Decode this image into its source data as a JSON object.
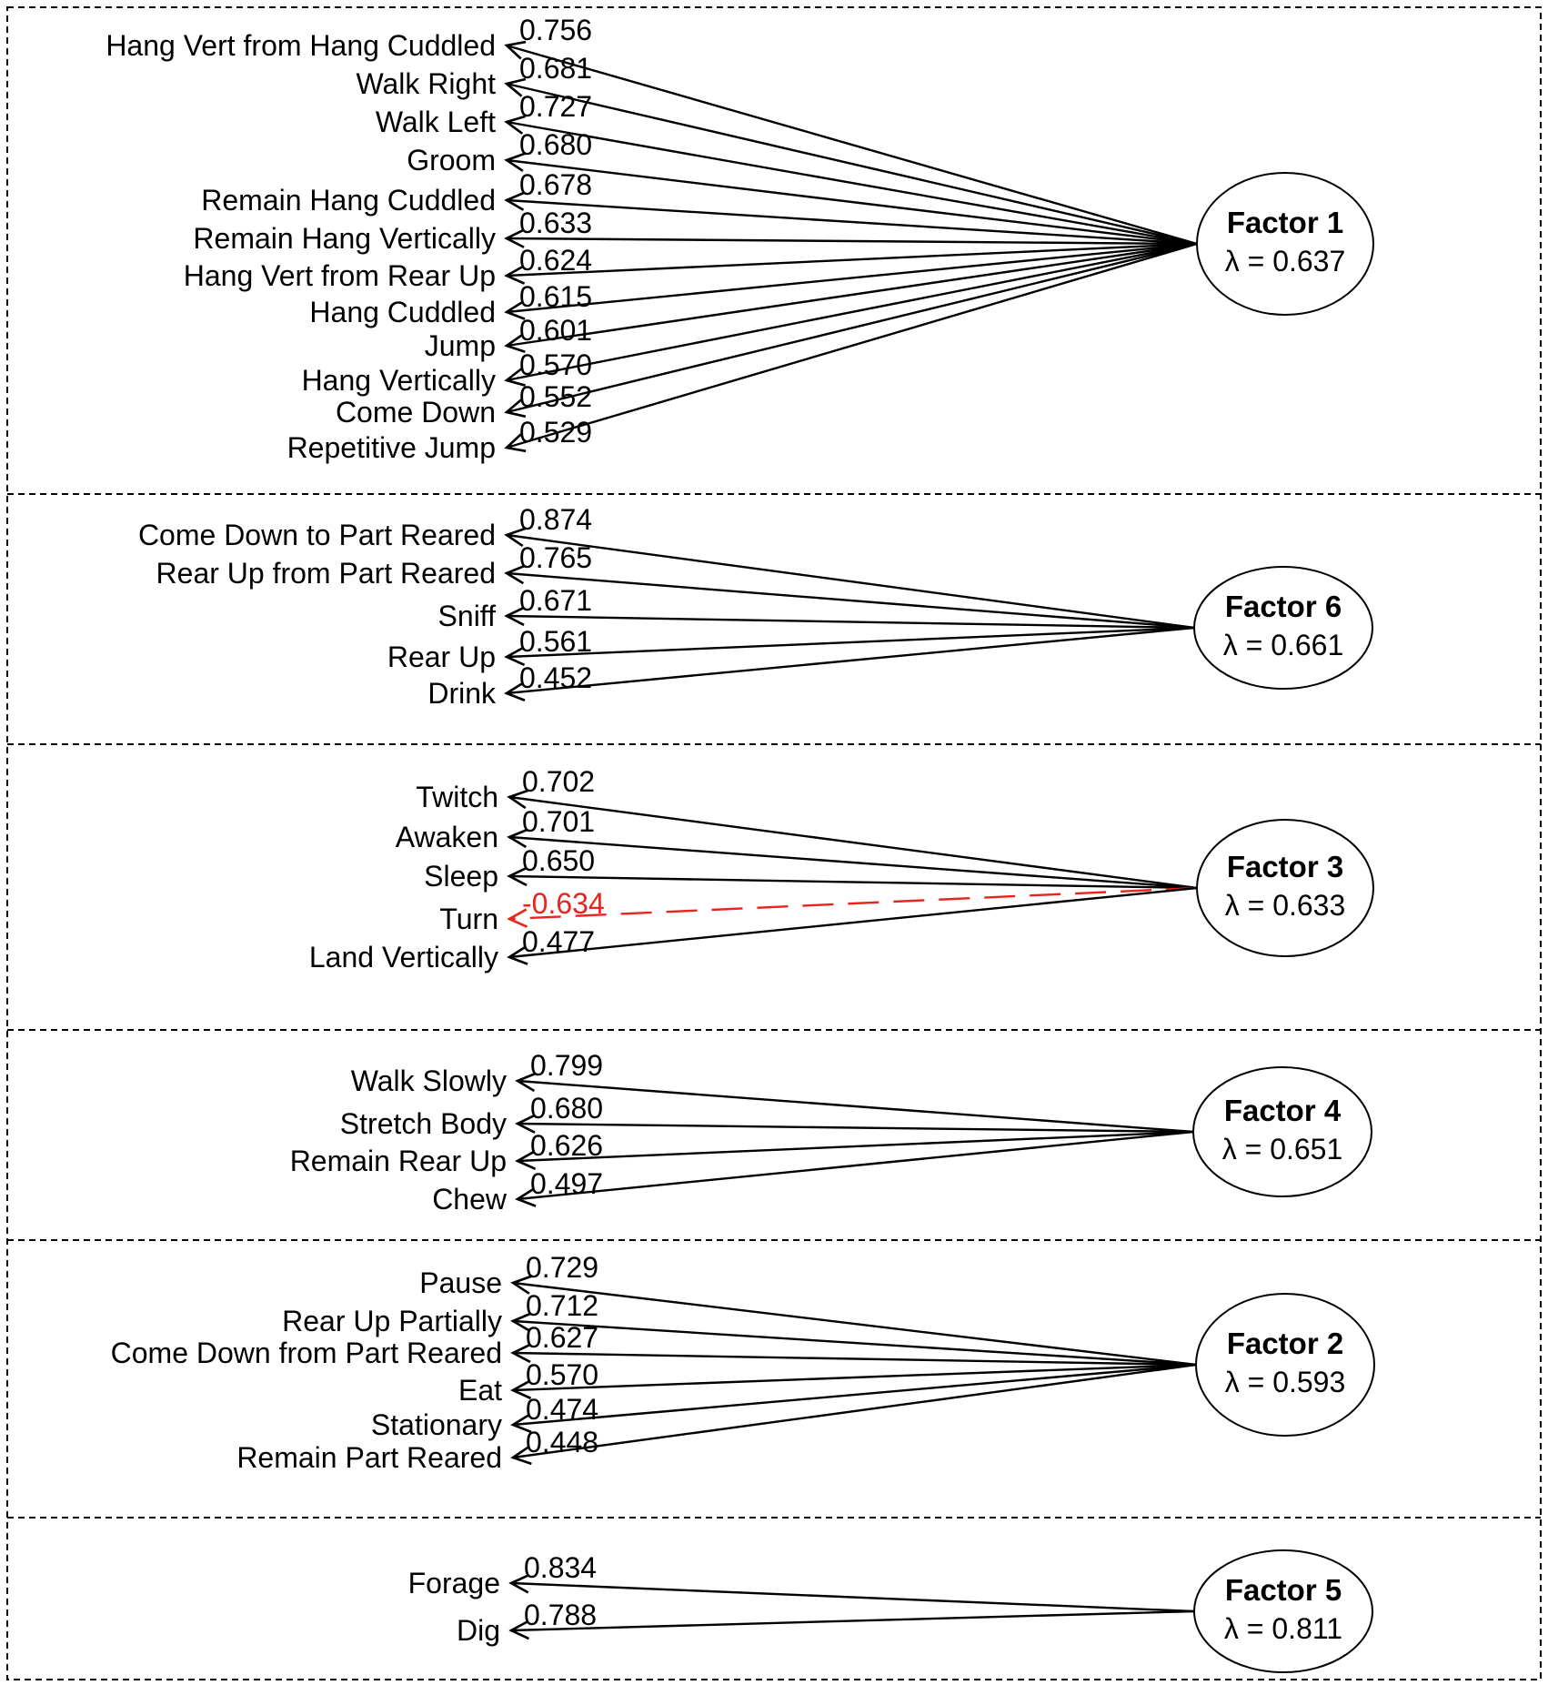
{
  "colors": {
    "line": "#000000",
    "negative": "#e8241f",
    "background": "#ffffff"
  },
  "panels": [
    {
      "factor": "Factor 1",
      "lambda": "λ = 0.637",
      "items": [
        {
          "label": "Hang Vert from Hang Cuddled",
          "loading": "0.756",
          "value": 0.756
        },
        {
          "label": "Walk Right",
          "loading": "0.681",
          "value": 0.681
        },
        {
          "label": "Walk Left",
          "loading": "0.727",
          "value": 0.727
        },
        {
          "label": "Groom",
          "loading": "0.680",
          "value": 0.68
        },
        {
          "label": "Remain Hang Cuddled",
          "loading": "0.678",
          "value": 0.678
        },
        {
          "label": "Remain Hang Vertically",
          "loading": "0.633",
          "value": 0.633
        },
        {
          "label": "Hang Vert from Rear Up",
          "loading": "0.624",
          "value": 0.624
        },
        {
          "label": "Hang Cuddled",
          "loading": "0.615",
          "value": 0.615
        },
        {
          "label": "Jump",
          "loading": "0.601",
          "value": 0.601
        },
        {
          "label": "Hang Vertically",
          "loading": "0.570",
          "value": 0.57
        },
        {
          "label": "Come Down",
          "loading": "0.552",
          "value": 0.552
        },
        {
          "label": "Repetitive Jump",
          "loading": "0.529",
          "value": 0.529
        }
      ]
    },
    {
      "factor": "Factor 6",
      "lambda": "λ = 0.661",
      "items": [
        {
          "label": "Come Down to Part Reared",
          "loading": "0.874",
          "value": 0.874
        },
        {
          "label": "Rear  Up from Part Reared",
          "loading": "0.765",
          "value": 0.765
        },
        {
          "label": "Sniff",
          "loading": "0.671",
          "value": 0.671
        },
        {
          "label": "Rear Up",
          "loading": "0.561",
          "value": 0.561
        },
        {
          "label": "Drink",
          "loading": "0.452",
          "value": 0.452
        }
      ]
    },
    {
      "factor": "Factor 3",
      "lambda": "λ = 0.633",
      "items": [
        {
          "label": "Twitch",
          "loading": "0.702",
          "value": 0.702
        },
        {
          "label": "Awaken",
          "loading": "0.701",
          "value": 0.701
        },
        {
          "label": "Sleep",
          "loading": "0.650",
          "value": 0.65
        },
        {
          "label": "Turn",
          "loading": "-0.634",
          "value": -0.634
        },
        {
          "label": "Land Vertically",
          "loading": "0.477",
          "value": 0.477
        }
      ]
    },
    {
      "factor": "Factor 4",
      "lambda": "λ = 0.651",
      "items": [
        {
          "label": "Walk Slowly",
          "loading": "0.799",
          "value": 0.799
        },
        {
          "label": "Stretch Body",
          "loading": "0.680",
          "value": 0.68
        },
        {
          "label": "Remain Rear Up",
          "loading": "0.626",
          "value": 0.626
        },
        {
          "label": "Chew",
          "loading": "0.497",
          "value": 0.497
        }
      ]
    },
    {
      "factor": "Factor 2",
      "lambda": "λ = 0.593",
      "items": [
        {
          "label": "Pause",
          "loading": "0.729",
          "value": 0.729
        },
        {
          "label": "Rear Up Partially",
          "loading": "0.712",
          "value": 0.712
        },
        {
          "label": "Come Down from Part Reared",
          "loading": "0.627",
          "value": 0.627
        },
        {
          "label": "Eat",
          "loading": "0.570",
          "value": 0.57
        },
        {
          "label": "Stationary",
          "loading": "0.474",
          "value": 0.474
        },
        {
          "label": "Remain Part Reared",
          "loading": "0.448",
          "value": 0.448
        }
      ]
    },
    {
      "factor": "Factor 5",
      "lambda": "λ = 0.811",
      "items": [
        {
          "label": "Forage",
          "loading": "0.834",
          "value": 0.834
        },
        {
          "label": "Dig",
          "loading": "0.788",
          "value": 0.788
        }
      ]
    }
  ]
}
